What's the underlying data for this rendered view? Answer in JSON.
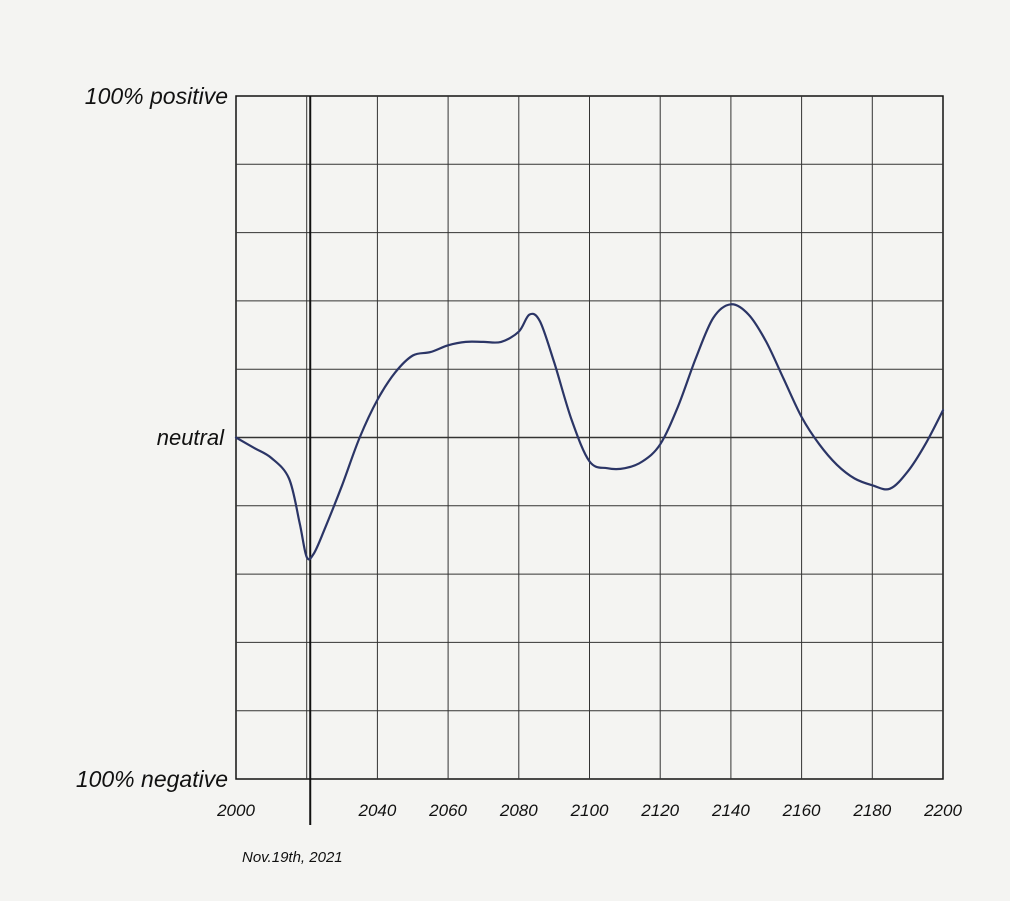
{
  "chart_data": {
    "type": "line",
    "title": "",
    "xlabel": "",
    "ylabel": "",
    "xlim": [
      2000,
      2200
    ],
    "ylim": [
      -100,
      100
    ],
    "x_ticks": [
      2000,
      2040,
      2060,
      2080,
      2100,
      2120,
      2140,
      2160,
      2180,
      2200
    ],
    "y_labels": {
      "top": "100% positive",
      "middle": "neutral",
      "bottom": "100% negative"
    },
    "marker": {
      "x": 2021,
      "label": "Nov.19th, 2021"
    },
    "grid": true,
    "series": [
      {
        "color": "#2b3566",
        "x": [
          2000,
          2005,
          2010,
          2015,
          2018,
          2020,
          2022,
          2025,
          2030,
          2035,
          2040,
          2045,
          2050,
          2055,
          2060,
          2065,
          2070,
          2075,
          2080,
          2083,
          2086,
          2090,
          2095,
          2100,
          2105,
          2110,
          2115,
          2120,
          2125,
          2130,
          2135,
          2140,
          2145,
          2150,
          2155,
          2160,
          2165,
          2170,
          2175,
          2180,
          2185,
          2190,
          2195,
          2200
        ],
        "y": [
          0,
          -3,
          -6,
          -12,
          -25,
          -35,
          -34,
          -27,
          -14,
          0,
          11,
          19,
          24,
          25,
          27,
          28,
          28,
          28,
          31,
          36,
          34,
          22,
          5,
          -7,
          -9,
          -9,
          -7,
          -2,
          9,
          23,
          35,
          39,
          36,
          28,
          17,
          6,
          -2,
          -8,
          -12,
          -14,
          -15,
          -10,
          -2,
          8
        ]
      }
    ]
  }
}
